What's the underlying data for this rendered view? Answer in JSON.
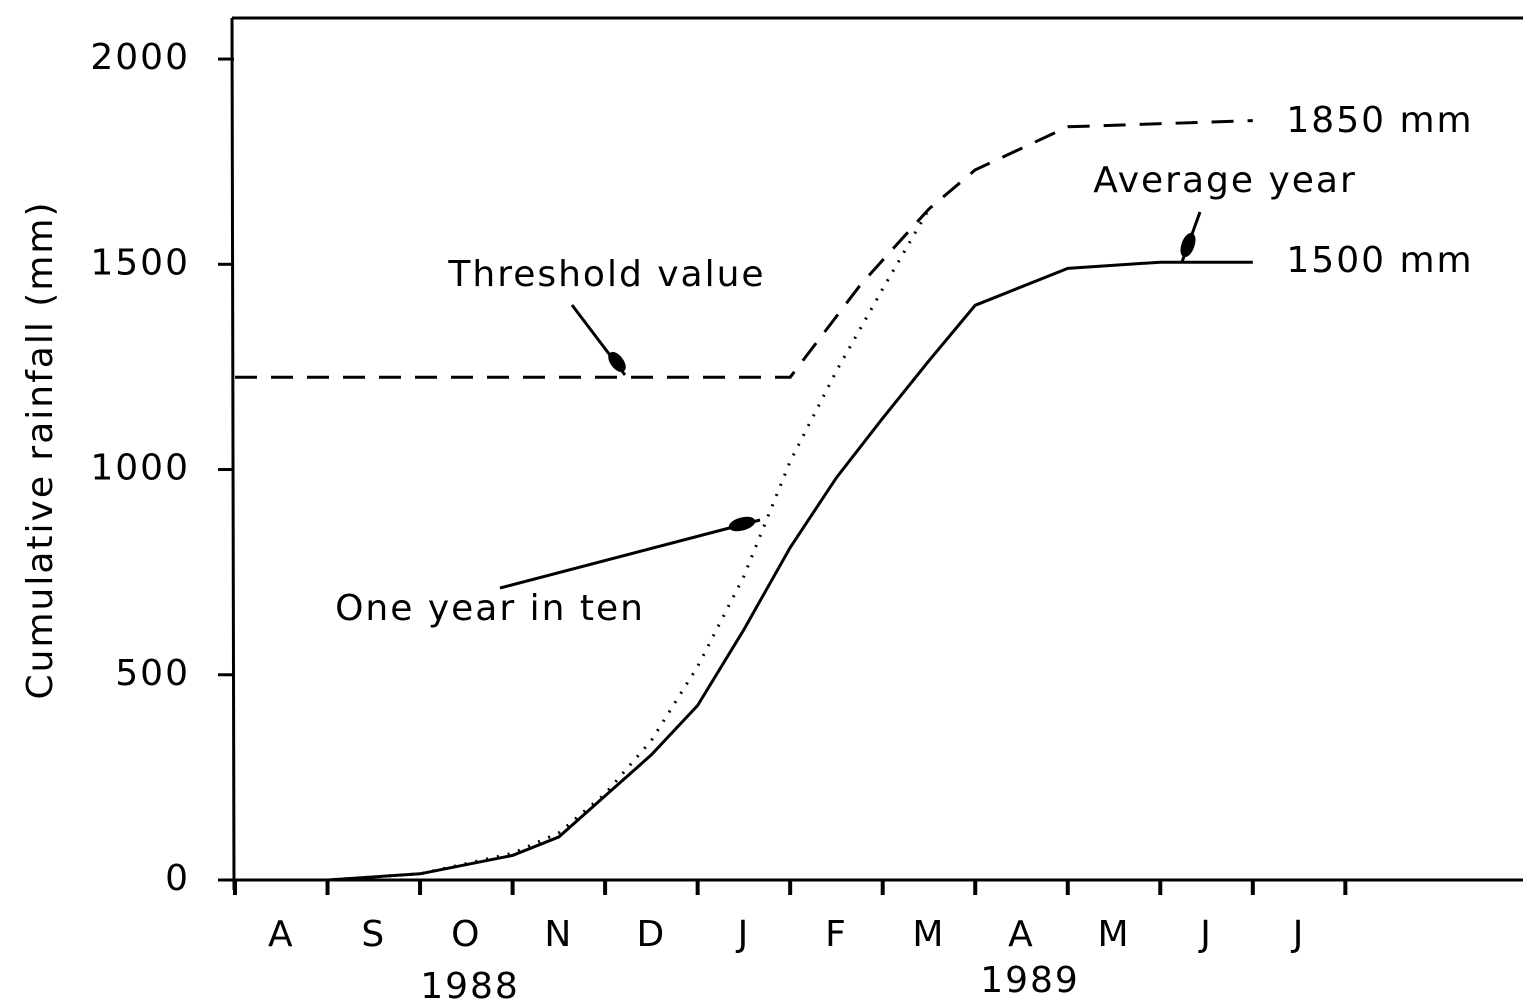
{
  "chart_data": {
    "type": "line",
    "ylabel": "Cumulative rainfall (mm)",
    "categories": [
      "A",
      "S",
      "O",
      "N",
      "D",
      "J",
      "F",
      "M",
      "A",
      "M",
      "J",
      "J"
    ],
    "xlim": [
      0,
      13.92
    ],
    "ylim": [
      0,
      2100
    ],
    "yticks": [
      0,
      500,
      1000,
      1500,
      2000
    ],
    "series": [
      {
        "name": "Average year",
        "color": "#000000",
        "style": "solid",
        "x": [
          0,
          1,
          2,
          3,
          3.5,
          4,
          4.5,
          5,
          5.5,
          6,
          6.5,
          7,
          7.5,
          8,
          9,
          10,
          11
        ],
        "values": [
          0,
          0,
          15,
          60,
          105,
          205,
          305,
          425,
          610,
          810,
          980,
          1125,
          1265,
          1400,
          1490,
          1505,
          1505
        ]
      },
      {
        "name": "Threshold value",
        "color": "#000000",
        "style": "dashed",
        "x": [
          0,
          6,
          6.76,
          7.5,
          8,
          9,
          11
        ],
        "values": [
          1225,
          1225,
          1450,
          1635,
          1730,
          1835,
          1850
        ]
      },
      {
        "name": "One year in ten",
        "color": "#000000",
        "style": "dotted",
        "x": [
          0,
          1,
          2,
          3,
          3.5,
          4,
          4.5,
          5,
          5.5,
          6,
          6.5,
          7,
          7.5
        ],
        "values": [
          0,
          0,
          15,
          65,
          115,
          210,
          340,
          520,
          740,
          1020,
          1240,
          1440,
          1635
        ]
      }
    ],
    "annotations": [
      "1850 mm",
      "1500 mm",
      "1988",
      "1989"
    ]
  }
}
